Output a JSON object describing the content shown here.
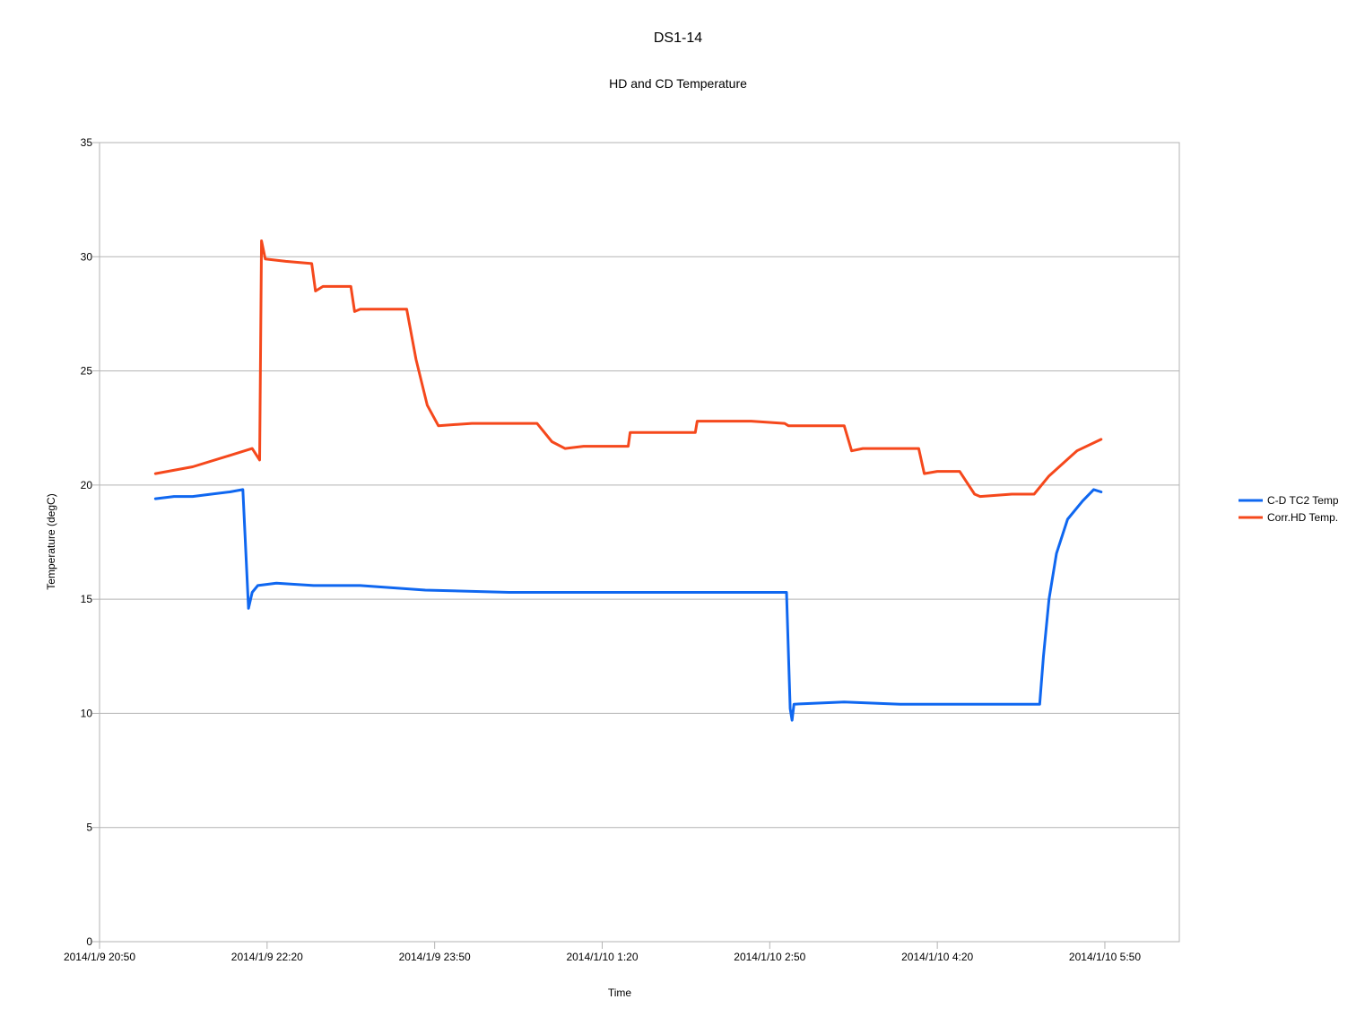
{
  "chart_data": {
    "type": "line",
    "title": "DS1-14",
    "subtitle": "HD and CD Temperature",
    "xlabel": "Time",
    "ylabel": "Temperature (degC)",
    "ylim": [
      0,
      35
    ],
    "yticks": [
      "0",
      "5",
      "10",
      "15",
      "20",
      "25",
      "30",
      "35"
    ],
    "xlim": [
      "2014/1/9 20:50",
      "2014/1/10 6:30"
    ],
    "xticks": [
      {
        "t": "2014/1/9 20:50",
        "label": "2014/1/9 20:50"
      },
      {
        "t": "2014/1/9 22:20",
        "label": "2014/1/9 22:20"
      },
      {
        "t": "2014/1/9 23:50",
        "label": "2014/1/9 23:50"
      },
      {
        "t": "2014/1/10 1:20",
        "label": "2014/1/10 1:20"
      },
      {
        "t": "2014/1/10 2:50",
        "label": "2014/1/10 2:50"
      },
      {
        "t": "2014/1/10 4:20",
        "label": "2014/1/10 4:20"
      },
      {
        "t": "2014/1/10 5:50",
        "label": "2014/1/10 5:50"
      }
    ],
    "grid": true,
    "legend_position": "right",
    "series": [
      {
        "name": "C-D TC2 Temp",
        "color": "#0f67f0",
        "points": [
          [
            "2014/1/9 21:20",
            19.4
          ],
          [
            "2014/1/9 21:30",
            19.5
          ],
          [
            "2014/1/9 21:40",
            19.5
          ],
          [
            "2014/1/9 21:50",
            19.6
          ],
          [
            "2014/1/9 22:00",
            19.7
          ],
          [
            "2014/1/9 22:07",
            19.8
          ],
          [
            "2014/1/9 22:10",
            14.6
          ],
          [
            "2014/1/9 22:12",
            15.3
          ],
          [
            "2014/1/9 22:15",
            15.6
          ],
          [
            "2014/1/9 22:25",
            15.7
          ],
          [
            "2014/1/9 22:45",
            15.6
          ],
          [
            "2014/1/9 23:10",
            15.6
          ],
          [
            "2014/1/9 23:45",
            15.4
          ],
          [
            "2014/1/10 0:30",
            15.3
          ],
          [
            "2014/1/10 1:30",
            15.3
          ],
          [
            "2014/1/10 2:30",
            15.3
          ],
          [
            "2014/1/10 2:59",
            15.3
          ],
          [
            "2014/1/10 3:01",
            10.2
          ],
          [
            "2014/1/10 3:02",
            9.7
          ],
          [
            "2014/1/10 3:03",
            10.4
          ],
          [
            "2014/1/10 3:30",
            10.5
          ],
          [
            "2014/1/10 4:00",
            10.4
          ],
          [
            "2014/1/10 4:30",
            10.4
          ],
          [
            "2014/1/10 5:00",
            10.4
          ],
          [
            "2014/1/10 5:15",
            10.4
          ],
          [
            "2014/1/10 5:17",
            12.5
          ],
          [
            "2014/1/10 5:20",
            15.0
          ],
          [
            "2014/1/10 5:24",
            17.0
          ],
          [
            "2014/1/10 5:30",
            18.5
          ],
          [
            "2014/1/10 5:38",
            19.3
          ],
          [
            "2014/1/10 5:44",
            19.8
          ],
          [
            "2014/1/10 5:48",
            19.7
          ]
        ]
      },
      {
        "name": "Corr.HD Temp.",
        "color": "#f5481c",
        "points": [
          [
            "2014/1/9 21:20",
            20.5
          ],
          [
            "2014/1/9 21:40",
            20.8
          ],
          [
            "2014/1/9 22:00",
            21.3
          ],
          [
            "2014/1/9 22:12",
            21.6
          ],
          [
            "2014/1/9 22:16",
            21.1
          ],
          [
            "2014/1/9 22:17",
            30.7
          ],
          [
            "2014/1/9 22:19",
            29.9
          ],
          [
            "2014/1/9 22:30",
            29.8
          ],
          [
            "2014/1/9 22:44",
            29.7
          ],
          [
            "2014/1/9 22:46",
            28.5
          ],
          [
            "2014/1/9 22:50",
            28.7
          ],
          [
            "2014/1/9 23:05",
            28.7
          ],
          [
            "2014/1/9 23:07",
            27.6
          ],
          [
            "2014/1/9 23:10",
            27.7
          ],
          [
            "2014/1/9 23:30",
            27.7
          ],
          [
            "2014/1/9 23:35",
            27.7
          ],
          [
            "2014/1/9 23:40",
            25.5
          ],
          [
            "2014/1/9 23:46",
            23.5
          ],
          [
            "2014/1/9 23:52",
            22.6
          ],
          [
            "2014/1/10 0:10",
            22.7
          ],
          [
            "2014/1/10 0:45",
            22.7
          ],
          [
            "2014/1/10 0:53",
            21.9
          ],
          [
            "2014/1/10 1:00",
            21.6
          ],
          [
            "2014/1/10 1:10",
            21.7
          ],
          [
            "2014/1/10 1:30",
            21.7
          ],
          [
            "2014/1/10 1:34",
            21.7
          ],
          [
            "2014/1/10 1:35",
            22.3
          ],
          [
            "2014/1/10 2:10",
            22.3
          ],
          [
            "2014/1/10 2:11",
            22.8
          ],
          [
            "2014/1/10 2:40",
            22.8
          ],
          [
            "2014/1/10 2:58",
            22.7
          ],
          [
            "2014/1/10 3:00",
            22.6
          ],
          [
            "2014/1/10 3:30",
            22.6
          ],
          [
            "2014/1/10 3:34",
            21.5
          ],
          [
            "2014/1/10 3:40",
            21.6
          ],
          [
            "2014/1/10 4:10",
            21.6
          ],
          [
            "2014/1/10 4:13",
            20.5
          ],
          [
            "2014/1/10 4:20",
            20.6
          ],
          [
            "2014/1/10 4:32",
            20.6
          ],
          [
            "2014/1/10 4:40",
            19.6
          ],
          [
            "2014/1/10 4:43",
            19.5
          ],
          [
            "2014/1/10 5:00",
            19.6
          ],
          [
            "2014/1/10 5:12",
            19.6
          ],
          [
            "2014/1/10 5:20",
            20.4
          ],
          [
            "2014/1/10 5:35",
            21.5
          ],
          [
            "2014/1/10 5:48",
            22.0
          ]
        ]
      }
    ]
  }
}
